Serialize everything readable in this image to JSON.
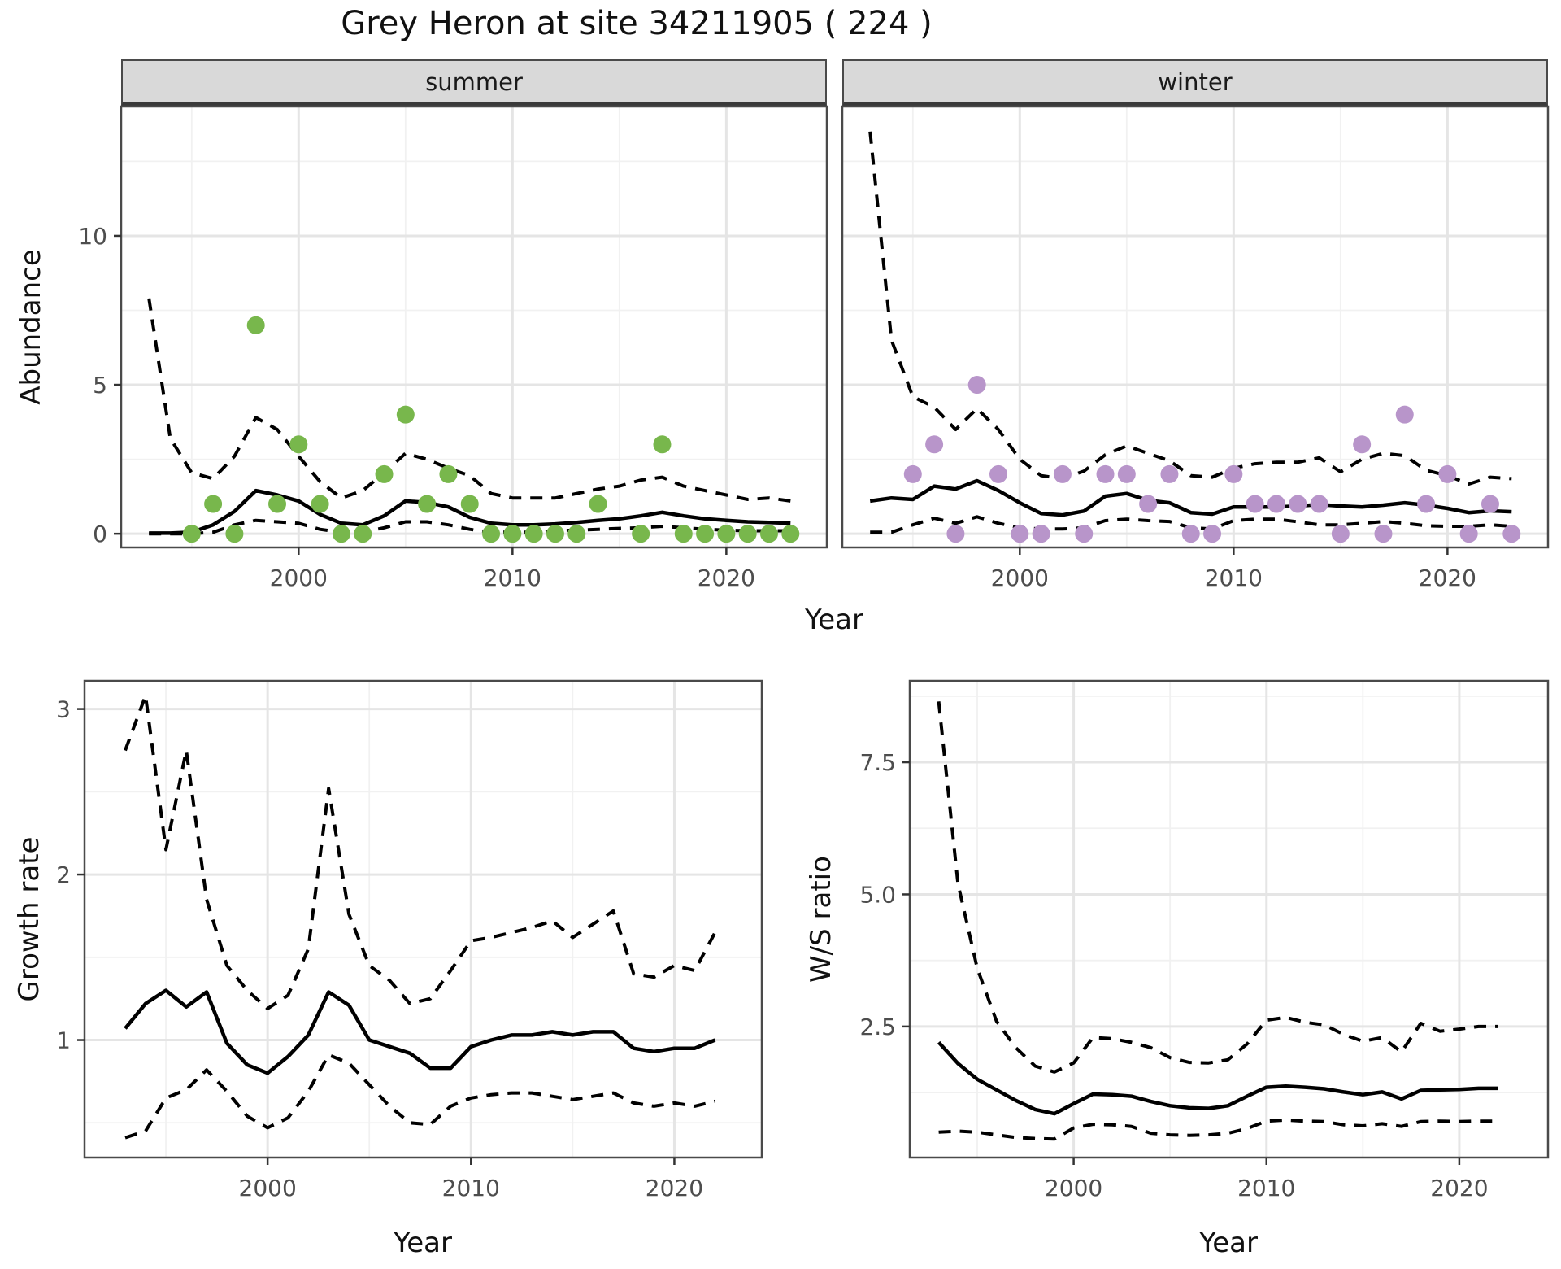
{
  "title": "Grey Heron at site 34211905 ( 224 )",
  "labels": {
    "facet_summer": "summer",
    "facet_winter": "winter",
    "abundance_axis": "Abundance",
    "year_axis_top": "Year",
    "growth_axis": "Growth rate",
    "year_axis_growth": "Year",
    "ws_axis": "W/S ratio",
    "year_axis_ws": "Year"
  },
  "colors": {
    "summer_point": "#78b74c",
    "winter_point": "#b895ca",
    "median_line": "#000000",
    "ci_line": "#000000",
    "strip_bg": "#d9d9d9",
    "panel_border": "#4a4a4a",
    "grid_major": "#e5e5e5",
    "grid_minor": "#f1f1f1",
    "tick_label": "#4d4d4d",
    "tick_mark": "#333333"
  },
  "chart_data": [
    {
      "type": "line",
      "panel": "summer",
      "title": "summer",
      "xlabel": "Year",
      "ylabel": "Abundance",
      "xlim": [
        1991.7,
        2024.7
      ],
      "ylim": [
        -0.46,
        14.34
      ],
      "xticks": [
        2000,
        2010,
        2020
      ],
      "xtick_labels": [
        "2000",
        "2010",
        "2020"
      ],
      "xticks_minor": [
        1995,
        2005,
        2015
      ],
      "yticks": [
        0,
        5,
        10
      ],
      "ytick_labels": [
        "0",
        "5",
        "10"
      ],
      "yticks_minor": [
        2.5,
        7.5,
        12.5
      ],
      "show_y_axis": true,
      "years": [
        1993,
        1994,
        1995,
        1996,
        1997,
        1998,
        1999,
        2000,
        2001,
        2002,
        2003,
        2004,
        2005,
        2006,
        2007,
        2008,
        2009,
        2010,
        2011,
        2012,
        2013,
        2014,
        2015,
        2016,
        2017,
        2018,
        2019,
        2020,
        2021,
        2022,
        2023
      ],
      "series": [
        {
          "name": "median",
          "style": "solid",
          "values": [
            0.02,
            0.02,
            0.05,
            0.3,
            0.75,
            1.45,
            1.3,
            1.1,
            0.65,
            0.35,
            0.3,
            0.6,
            1.1,
            1.05,
            0.9,
            0.55,
            0.35,
            0.3,
            0.3,
            0.33,
            0.38,
            0.45,
            0.5,
            0.6,
            0.72,
            0.6,
            0.5,
            0.45,
            0.4,
            0.38,
            0.35
          ]
        },
        {
          "name": "lower_ci",
          "style": "dashed",
          "values": [
            0,
            0,
            0,
            0.05,
            0.3,
            0.45,
            0.4,
            0.35,
            0.15,
            0.05,
            0.05,
            0.2,
            0.4,
            0.4,
            0.3,
            0.15,
            0.05,
            0.05,
            0.05,
            0.1,
            0.12,
            0.15,
            0.18,
            0.2,
            0.25,
            0.2,
            0.15,
            0.12,
            0.1,
            0.1,
            0.1
          ]
        },
        {
          "name": "upper_ci",
          "style": "dashed",
          "values": [
            7.9,
            3.2,
            2.05,
            1.85,
            2.6,
            3.9,
            3.5,
            2.6,
            1.75,
            1.2,
            1.45,
            2.05,
            2.7,
            2.5,
            2.2,
            1.95,
            1.35,
            1.2,
            1.2,
            1.2,
            1.35,
            1.5,
            1.6,
            1.8,
            1.9,
            1.6,
            1.45,
            1.3,
            1.15,
            1.2,
            1.1
          ]
        }
      ],
      "points": {
        "name": "observed_abundance",
        "years": [
          1995,
          1996,
          1997,
          1998,
          1999,
          2000,
          2001,
          2002,
          2003,
          2004,
          2005,
          2006,
          2007,
          2008,
          2009,
          2010,
          2011,
          2012,
          2013,
          2014,
          2016,
          2017,
          2018,
          2019,
          2020,
          2021,
          2022,
          2023
        ],
        "values": [
          0,
          1,
          0,
          7,
          1,
          3,
          1,
          0,
          0,
          2,
          4,
          1,
          2,
          1,
          0,
          0,
          0,
          0,
          0,
          1,
          0,
          3,
          0,
          0,
          0,
          0,
          0,
          0
        ]
      }
    },
    {
      "type": "line",
      "panel": "winter",
      "title": "winter",
      "xlabel": "Year",
      "ylabel": "Abundance",
      "xlim": [
        1991.7,
        2024.7
      ],
      "ylim": [
        -0.46,
        14.34
      ],
      "xticks": [
        2000,
        2010,
        2020
      ],
      "xtick_labels": [
        "2000",
        "2010",
        "2020"
      ],
      "xticks_minor": [
        1995,
        2005,
        2015
      ],
      "yticks": [
        0,
        5,
        10
      ],
      "ytick_labels": [
        "0",
        "5",
        "10"
      ],
      "yticks_minor": [
        2.5,
        7.5,
        12.5
      ],
      "show_y_axis": false,
      "years": [
        1993,
        1994,
        1995,
        1996,
        1997,
        1998,
        1999,
        2000,
        2001,
        2002,
        2003,
        2004,
        2005,
        2006,
        2007,
        2008,
        2009,
        2010,
        2011,
        2012,
        2013,
        2014,
        2015,
        2016,
        2017,
        2018,
        2019,
        2020,
        2021,
        2022,
        2023
      ],
      "series": [
        {
          "name": "median",
          "style": "solid",
          "values": [
            1.1,
            1.2,
            1.15,
            1.6,
            1.5,
            1.78,
            1.45,
            1.04,
            0.68,
            0.63,
            0.76,
            1.26,
            1.35,
            1.12,
            1.04,
            0.71,
            0.66,
            0.9,
            0.9,
            0.9,
            0.93,
            0.98,
            0.93,
            0.9,
            0.96,
            1.04,
            0.96,
            0.85,
            0.71,
            0.77,
            0.74
          ]
        },
        {
          "name": "lower_ci",
          "style": "dashed",
          "values": [
            0.05,
            0.05,
            0.3,
            0.52,
            0.35,
            0.57,
            0.35,
            0.2,
            0.16,
            0.16,
            0.2,
            0.44,
            0.49,
            0.44,
            0.41,
            0.2,
            0.16,
            0.44,
            0.49,
            0.49,
            0.4,
            0.3,
            0.3,
            0.35,
            0.41,
            0.35,
            0.27,
            0.25,
            0.25,
            0.3,
            0.25
          ]
        },
        {
          "name": "upper_ci",
          "style": "dashed",
          "values": [
            13.5,
            6.5,
            4.6,
            4.25,
            3.5,
            4.2,
            3.5,
            2.5,
            1.95,
            1.85,
            2.1,
            2.65,
            2.95,
            2.7,
            2.45,
            1.95,
            1.9,
            2.2,
            2.35,
            2.4,
            2.4,
            2.55,
            2.08,
            2.5,
            2.7,
            2.62,
            2.13,
            1.95,
            1.67,
            1.9,
            1.85
          ]
        }
      ],
      "points": {
        "name": "observed_abundance",
        "years": [
          1995,
          1996,
          1997,
          1998,
          1999,
          2000,
          2001,
          2002,
          2003,
          2004,
          2005,
          2006,
          2007,
          2008,
          2009,
          2010,
          2011,
          2012,
          2013,
          2014,
          2015,
          2016,
          2017,
          2018,
          2019,
          2020,
          2021,
          2022,
          2023
        ],
        "values": [
          2,
          3,
          0,
          5,
          2,
          0,
          0,
          2,
          0,
          2,
          2,
          1,
          2,
          0,
          0,
          2,
          1,
          1,
          1,
          1,
          0,
          3,
          0,
          4,
          1,
          2,
          0,
          1,
          0
        ]
      }
    },
    {
      "type": "line",
      "panel": "growth_rate",
      "title": "",
      "xlabel": "Year",
      "ylabel": "Growth rate",
      "xlim": [
        1991.0,
        2024.3
      ],
      "ylim": [
        0.29,
        3.17
      ],
      "xticks": [
        2000,
        2010,
        2020
      ],
      "xtick_labels": [
        "2000",
        "2010",
        "2020"
      ],
      "xticks_minor": [
        1995,
        2005,
        2015
      ],
      "yticks": [
        1,
        2,
        3
      ],
      "ytick_labels": [
        "1",
        "2",
        "3"
      ],
      "yticks_minor": [
        0.5,
        1.5,
        2.5
      ],
      "show_y_axis": true,
      "years": [
        1993,
        1994,
        1995,
        1996,
        1997,
        1998,
        1999,
        2000,
        2001,
        2002,
        2003,
        2004,
        2005,
        2006,
        2007,
        2008,
        2009,
        2010,
        2011,
        2012,
        2013,
        2014,
        2015,
        2016,
        2017,
        2018,
        2019,
        2020,
        2021,
        2022
      ],
      "series": [
        {
          "name": "median",
          "style": "solid",
          "values": [
            1.07,
            1.22,
            1.3,
            1.2,
            1.29,
            0.98,
            0.85,
            0.8,
            0.9,
            1.03,
            1.29,
            1.21,
            1.0,
            0.96,
            0.92,
            0.83,
            0.83,
            0.96,
            1.0,
            1.03,
            1.03,
            1.05,
            1.03,
            1.05,
            1.05,
            0.95,
            0.93,
            0.95,
            0.95,
            1.0
          ]
        },
        {
          "name": "lower_ci",
          "style": "dashed",
          "values": [
            0.41,
            0.45,
            0.65,
            0.7,
            0.82,
            0.69,
            0.54,
            0.47,
            0.53,
            0.69,
            0.91,
            0.86,
            0.73,
            0.6,
            0.5,
            0.49,
            0.6,
            0.65,
            0.67,
            0.68,
            0.68,
            0.66,
            0.64,
            0.66,
            0.68,
            0.62,
            0.6,
            0.62,
            0.6,
            0.63
          ]
        },
        {
          "name": "upper_ci",
          "style": "dashed",
          "values": [
            2.75,
            3.08,
            2.15,
            2.75,
            1.85,
            1.45,
            1.3,
            1.19,
            1.27,
            1.55,
            2.52,
            1.76,
            1.45,
            1.36,
            1.22,
            1.25,
            1.42,
            1.6,
            1.62,
            1.65,
            1.68,
            1.72,
            1.62,
            1.7,
            1.78,
            1.4,
            1.38,
            1.45,
            1.42,
            1.65
          ]
        }
      ],
      "points": {
        "name": "",
        "years": [],
        "values": []
      }
    },
    {
      "type": "line",
      "panel": "ws_ratio",
      "title": "",
      "xlabel": "Year",
      "ylabel": "W/S ratio",
      "xlim": [
        1991.5,
        2024.6
      ],
      "ylim": [
        0.02,
        9.04
      ],
      "xticks": [
        2000,
        2010,
        2020
      ],
      "xtick_labels": [
        "2000",
        "2010",
        "2020"
      ],
      "xticks_minor": [
        1995,
        2005,
        2015
      ],
      "yticks": [
        2.5,
        5.0,
        7.5
      ],
      "ytick_labels": [
        "2.5",
        "5.0",
        "7.5"
      ],
      "yticks_minor": [
        1.25,
        3.75,
        6.25,
        8.75
      ],
      "show_y_axis": true,
      "years": [
        1993,
        1994,
        1995,
        1996,
        1997,
        1998,
        1999,
        2000,
        2001,
        2002,
        2003,
        2004,
        2005,
        2006,
        2007,
        2008,
        2009,
        2010,
        2011,
        2012,
        2013,
        2014,
        2015,
        2016,
        2017,
        2018,
        2019,
        2020,
        2021,
        2022
      ],
      "series": [
        {
          "name": "median",
          "style": "solid",
          "values": [
            2.2,
            1.8,
            1.5,
            1.3,
            1.1,
            0.93,
            0.85,
            1.04,
            1.22,
            1.21,
            1.18,
            1.08,
            1.0,
            0.96,
            0.95,
            1.0,
            1.18,
            1.35,
            1.37,
            1.35,
            1.32,
            1.26,
            1.21,
            1.26,
            1.13,
            1.29,
            1.3,
            1.31,
            1.33,
            1.33
          ]
        },
        {
          "name": "lower_ci",
          "style": "dashed",
          "values": [
            0.5,
            0.52,
            0.5,
            0.45,
            0.4,
            0.38,
            0.37,
            0.58,
            0.65,
            0.64,
            0.61,
            0.48,
            0.45,
            0.44,
            0.45,
            0.48,
            0.57,
            0.71,
            0.73,
            0.71,
            0.7,
            0.64,
            0.62,
            0.66,
            0.61,
            0.7,
            0.71,
            0.7,
            0.71,
            0.71
          ]
        },
        {
          "name": "upper_ci",
          "style": "dashed",
          "values": [
            8.65,
            5.2,
            3.6,
            2.6,
            2.1,
            1.75,
            1.64,
            1.81,
            2.29,
            2.27,
            2.2,
            2.1,
            1.91,
            1.82,
            1.81,
            1.87,
            2.17,
            2.62,
            2.67,
            2.58,
            2.53,
            2.35,
            2.22,
            2.29,
            2.02,
            2.56,
            2.41,
            2.45,
            2.5,
            2.5
          ]
        }
      ],
      "points": {
        "name": "",
        "years": [],
        "values": []
      }
    }
  ]
}
